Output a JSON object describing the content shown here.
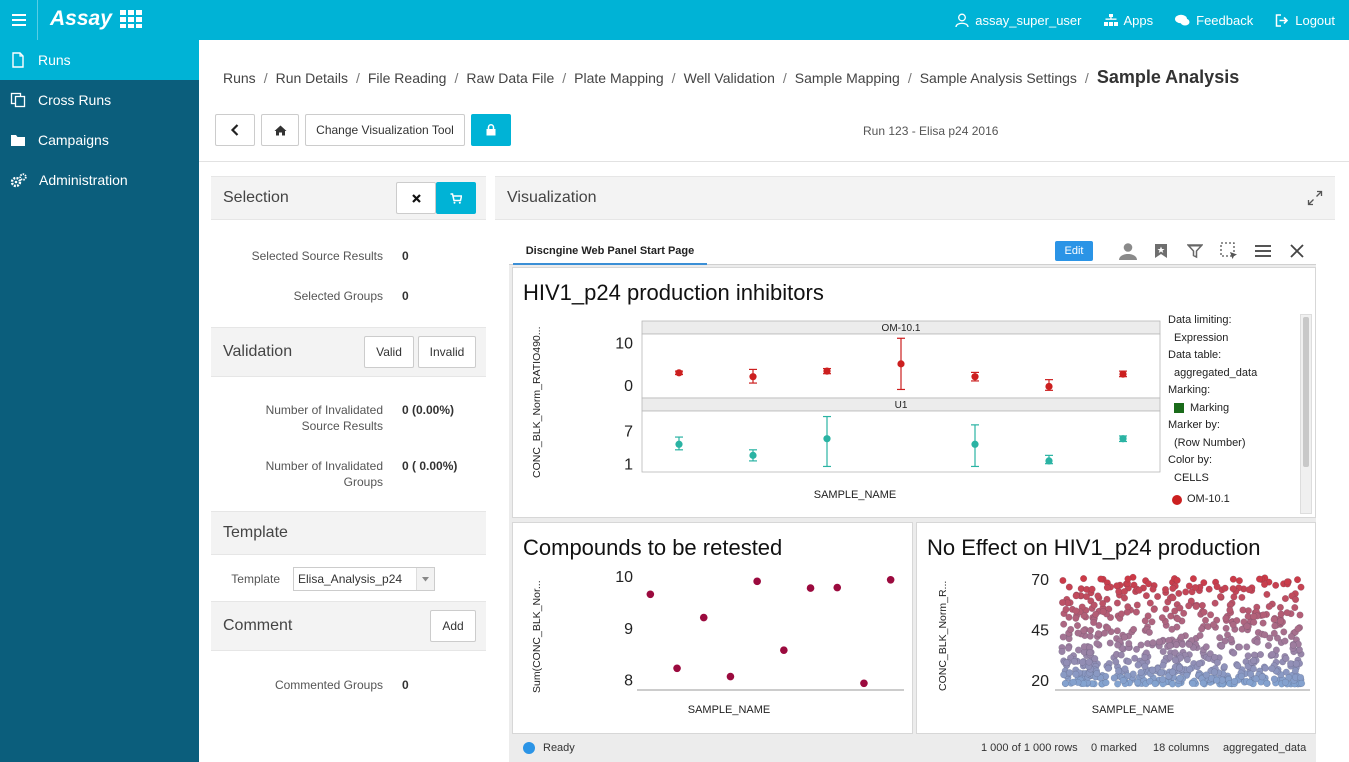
{
  "topbar": {
    "brand": "Assay",
    "user": "assay_super_user",
    "apps": "Apps",
    "feedback": "Feedback",
    "logout": "Logout"
  },
  "sidebar": {
    "items": [
      {
        "label": "Runs",
        "icon": "file-icon",
        "active": true
      },
      {
        "label": "Cross Runs",
        "icon": "copy-icon",
        "active": false
      },
      {
        "label": "Campaigns",
        "icon": "folder-icon",
        "active": false
      },
      {
        "label": "Administration",
        "icon": "gears-icon",
        "active": false
      }
    ]
  },
  "breadcrumb": {
    "items": [
      "Runs",
      "Run Details",
      "File Reading",
      "Raw Data File",
      "Plate Mapping",
      "Well Validation",
      "Sample Mapping",
      "Sample Analysis Settings"
    ],
    "current": "Sample Analysis"
  },
  "toolbar": {
    "change_tool": "Change Visualization Tool",
    "run_title": "Run 123 - Elisa p24 2016"
  },
  "selection": {
    "title": "Selection",
    "selected_source_label": "Selected Source Results",
    "selected_source_value": "0",
    "selected_groups_label": "Selected Groups",
    "selected_groups_value": "0"
  },
  "validation": {
    "title": "Validation",
    "valid_label": "Valid",
    "invalid_label": "Invalid",
    "inv_source_label_1": "Number of Invalidated",
    "inv_source_label_2": "Source Results",
    "inv_source_value": "0 (0.00%)",
    "inv_groups_label_1": "Number of Invalidated",
    "inv_groups_label_2": "Groups",
    "inv_groups_value": "0 ( 0.00%)"
  },
  "template": {
    "title": "Template",
    "label": "Template",
    "value": "Elisa_Analysis_p24"
  },
  "comment": {
    "title": "Comment",
    "add_label": "Add",
    "commented_label": "Commented Groups",
    "commented_value": "0"
  },
  "visualization": {
    "title": "Visualization",
    "tab": "Discngine Web Panel Start Page",
    "edit": "Edit"
  },
  "legend": {
    "data_limiting_label": "Data limiting:",
    "data_limiting_value": "Expression",
    "data_table_label": "Data table:",
    "data_table_value": "aggregated_data",
    "marking_label": "Marking:",
    "marking_value": "Marking",
    "marker_by_label": "Marker by:",
    "marker_by_value": "(Row Number)",
    "color_by_label": "Color by:",
    "color_by_value": "CELLS",
    "color_item": "OM-10.1",
    "marking_color": "#1a6b1a",
    "om_color": "#cc1f1f"
  },
  "status": {
    "ready": "Ready",
    "rows": "1 000 of 1 000 rows",
    "marked": "0 marked",
    "columns": "18 columns",
    "table": "aggregated_data"
  },
  "chart_data": [
    {
      "type": "scatter",
      "title": "HIV1_p24 production inhibitors",
      "xlabel": "SAMPLE_NAME",
      "ylabel": "CONC_BLK_Norm_RATIO490...",
      "panels": [
        {
          "name": "OM-10.1",
          "yticks": [
            "10",
            "0"
          ],
          "color": "#cc1f1f",
          "points": [
            {
              "y": 2.9,
              "lo": 2.5,
              "hi": 3.3
            },
            {
              "y": 2.0,
              "lo": 0.5,
              "hi": 3.7
            },
            {
              "y": 3.3,
              "lo": 2.7,
              "hi": 3.9
            },
            {
              "y": 5.0,
              "lo": -1.0,
              "hi": 11.0
            },
            {
              "y": 2.0,
              "lo": 1.0,
              "hi": 3.0
            },
            {
              "y": -0.3,
              "lo": -1.2,
              "hi": 1.3
            },
            {
              "y": 2.6,
              "lo": 2.0,
              "hi": 3.3
            }
          ]
        },
        {
          "name": "U1",
          "yticks": [
            "7",
            "1"
          ],
          "color": "#2ab3a3",
          "points": [
            {
              "y": 4.5,
              "lo": 3.5,
              "hi": 5.8
            },
            {
              "y": 2.5,
              "lo": 1.5,
              "hi": 3.5
            },
            {
              "y": 5.5,
              "lo": 0.5,
              "hi": 9.5
            },
            {
              "y": null
            },
            {
              "y": 4.5,
              "lo": 0.5,
              "hi": 8.0
            },
            {
              "y": 1.5,
              "lo": 1.0,
              "hi": 2.5
            },
            {
              "y": 5.5,
              "lo": 5.0,
              "hi": 6.0
            }
          ]
        }
      ]
    },
    {
      "type": "scatter",
      "title": "Compounds to be retested",
      "xlabel": "SAMPLE_NAME",
      "ylabel": "Sum(CONC_BLK_Nor...",
      "yticks": [
        "10",
        "9",
        "8"
      ],
      "ylim": [
        7.8,
        10.1
      ],
      "color": "#9b0a3e",
      "values": [
        9.65,
        8.22,
        9.2,
        8.06,
        9.9,
        8.57,
        9.77,
        9.78,
        7.93,
        9.93
      ]
    },
    {
      "type": "scatter",
      "title": "No Effect on HIV1_p24 production",
      "xlabel": "SAMPLE_NAME",
      "ylabel": "CONC_BLK_Norm_R...",
      "yticks": [
        "70",
        "45",
        "20"
      ],
      "ylim": [
        15,
        74
      ],
      "color_low": "#7fa9d8",
      "color_high": "#d1323d",
      "n_points": 1000
    }
  ]
}
